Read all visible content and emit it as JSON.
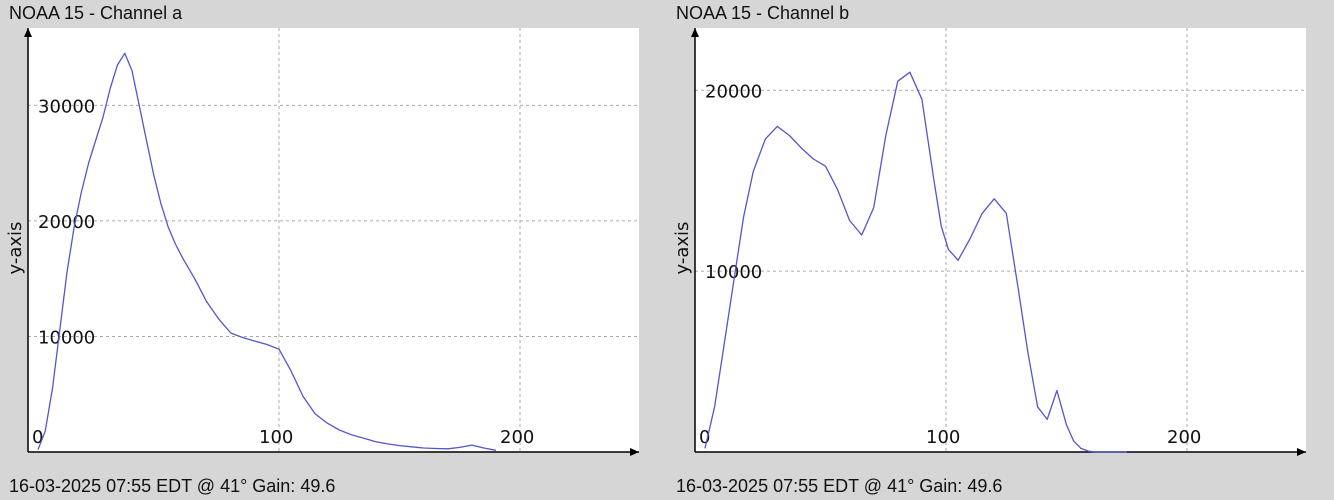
{
  "panels": [
    {
      "title": "NOAA 15 - Channel a",
      "footer": "16-03-2025 07:55 EDT @ 41° Gain: 49.6"
    },
    {
      "title": "NOAA 15 - Channel b",
      "footer": "16-03-2025 07:55 EDT @ 41° Gain: 49.6"
    }
  ],
  "colors": {
    "background": "#d6d6d6",
    "plot_background": "#ffffff",
    "series": "#5555cc",
    "grid": "#aaaaaa",
    "axis": "#000000"
  },
  "chart_data": [
    {
      "type": "line",
      "title": "NOAA 15 - Channel a",
      "ylabel": "y-axis",
      "xlabel": "",
      "xlim": [
        0,
        255
      ],
      "ylim": [
        0,
        36000
      ],
      "x_ticks": [
        0,
        100,
        200
      ],
      "y_ticks": [
        10000,
        20000,
        30000
      ],
      "grid": true,
      "series": [
        {
          "x": [
            0,
            3,
            6,
            9,
            12,
            15,
            18,
            21,
            24,
            27,
            30,
            33,
            36,
            39,
            42,
            45,
            48,
            51,
            54,
            57,
            60,
            65,
            70,
            75,
            80,
            85,
            90,
            95,
            100,
            105,
            110,
            115,
            120,
            125,
            130,
            135,
            140,
            145,
            150,
            155,
            160,
            165,
            170,
            175,
            180,
            185,
            190
          ],
          "y": [
            200,
            1800,
            5500,
            10500,
            15500,
            19500,
            22500,
            25000,
            27000,
            29000,
            31500,
            33500,
            34500,
            33000,
            30000,
            27000,
            24000,
            21500,
            19500,
            18000,
            16800,
            15000,
            13000,
            11500,
            10300,
            9900,
            9600,
            9300,
            8900,
            7000,
            4800,
            3300,
            2500,
            1900,
            1500,
            1200,
            900,
            700,
            550,
            450,
            350,
            300,
            280,
            400,
            600,
            350,
            150
          ]
        }
      ]
    },
    {
      "type": "line",
      "title": "NOAA 15 - Channel b",
      "ylabel": "y-axis",
      "xlabel": "",
      "xlim": [
        0,
        255
      ],
      "ylim": [
        0,
        23000
      ],
      "x_ticks": [
        0,
        100,
        200
      ],
      "y_ticks": [
        10000,
        20000
      ],
      "grid": true,
      "series": [
        {
          "x": [
            0,
            4,
            8,
            12,
            16,
            20,
            25,
            30,
            35,
            40,
            45,
            50,
            55,
            60,
            65,
            70,
            75,
            80,
            85,
            90,
            95,
            98,
            101,
            105,
            110,
            115,
            120,
            125,
            130,
            134,
            138,
            142,
            146,
            150,
            153,
            156,
            159,
            162,
            165,
            170,
            175
          ],
          "y": [
            200,
            2500,
            6000,
            9500,
            13000,
            15500,
            17300,
            18000,
            17500,
            16800,
            16200,
            15800,
            14500,
            12800,
            12000,
            13500,
            17500,
            20500,
            21000,
            19500,
            15000,
            12500,
            11200,
            10600,
            11800,
            13200,
            14000,
            13200,
            9000,
            5500,
            2500,
            1800,
            3400,
            1500,
            600,
            200,
            50,
            0,
            0,
            0,
            0
          ]
        }
      ]
    }
  ]
}
